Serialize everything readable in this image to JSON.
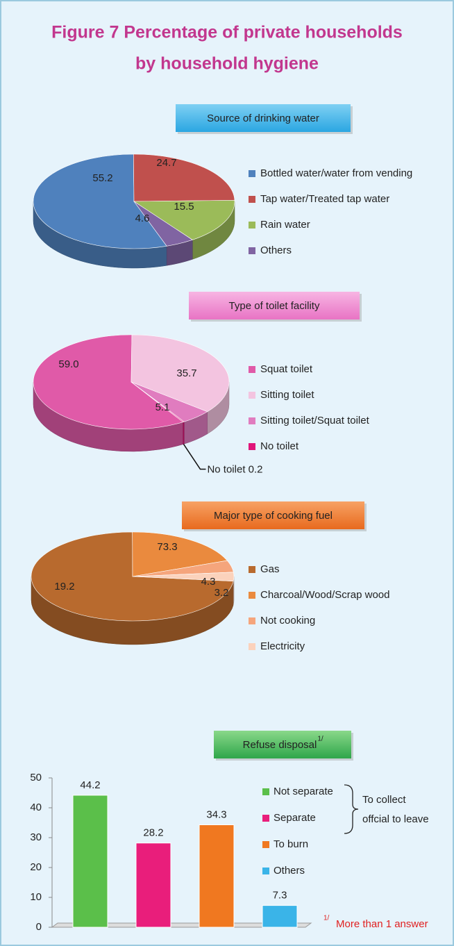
{
  "title": [
    "Figure 7 Percentage of private households",
    "by household hygiene"
  ],
  "chart_data": [
    {
      "type": "pie",
      "title": "Source of drinking water",
      "categories": [
        "Bottled water/water from vending",
        "Tap water/Treated tap water",
        "Rain water",
        "Others"
      ],
      "values": [
        55.2,
        24.7,
        15.5,
        4.6
      ],
      "colors": [
        "#4f81bd",
        "#c0504d",
        "#9bbb59",
        "#8064a2"
      ]
    },
    {
      "type": "pie",
      "title": "Type of toilet facility",
      "categories": [
        "Squat toilet",
        "Sitting toilet",
        "Sitting toilet/Squat toilet",
        "No toilet"
      ],
      "values": [
        59.0,
        35.7,
        5.1,
        0.2
      ],
      "value_labels": [
        "59.0",
        "35.7",
        "5.1",
        "No toilet 0.2"
      ],
      "colors": [
        "#e05aa8",
        "#f3c4e0",
        "#e07cbf",
        "#e0157a"
      ]
    },
    {
      "type": "pie",
      "title": "Major type of cooking fuel",
      "categories": [
        "Gas",
        "Charcoal/Wood/Scrap wood",
        "Not cooking",
        "Electricity"
      ],
      "values": [
        73.3,
        19.2,
        4.3,
        3.2
      ],
      "colors": [
        "#b86a2e",
        "#ea8a3e",
        "#f5a57c",
        "#fbd2bc"
      ]
    },
    {
      "type": "bar",
      "title": "Refuse disposal",
      "title_note": "1/",
      "categories": [
        "Not separate",
        "Separate",
        "To burn",
        "Others"
      ],
      "values": [
        44.2,
        28.2,
        34.3,
        7.3
      ],
      "colors": [
        "#5bbf4a",
        "#e91e7b",
        "#f07820",
        "#3ab4e8"
      ],
      "ylim": [
        0,
        50
      ],
      "yticks": [
        0,
        10,
        20,
        30,
        40,
        50
      ],
      "annotation": [
        "To collect",
        "offcial to leave"
      ],
      "footnote_mark": "1/",
      "footnote": "More than 1 answer"
    }
  ]
}
